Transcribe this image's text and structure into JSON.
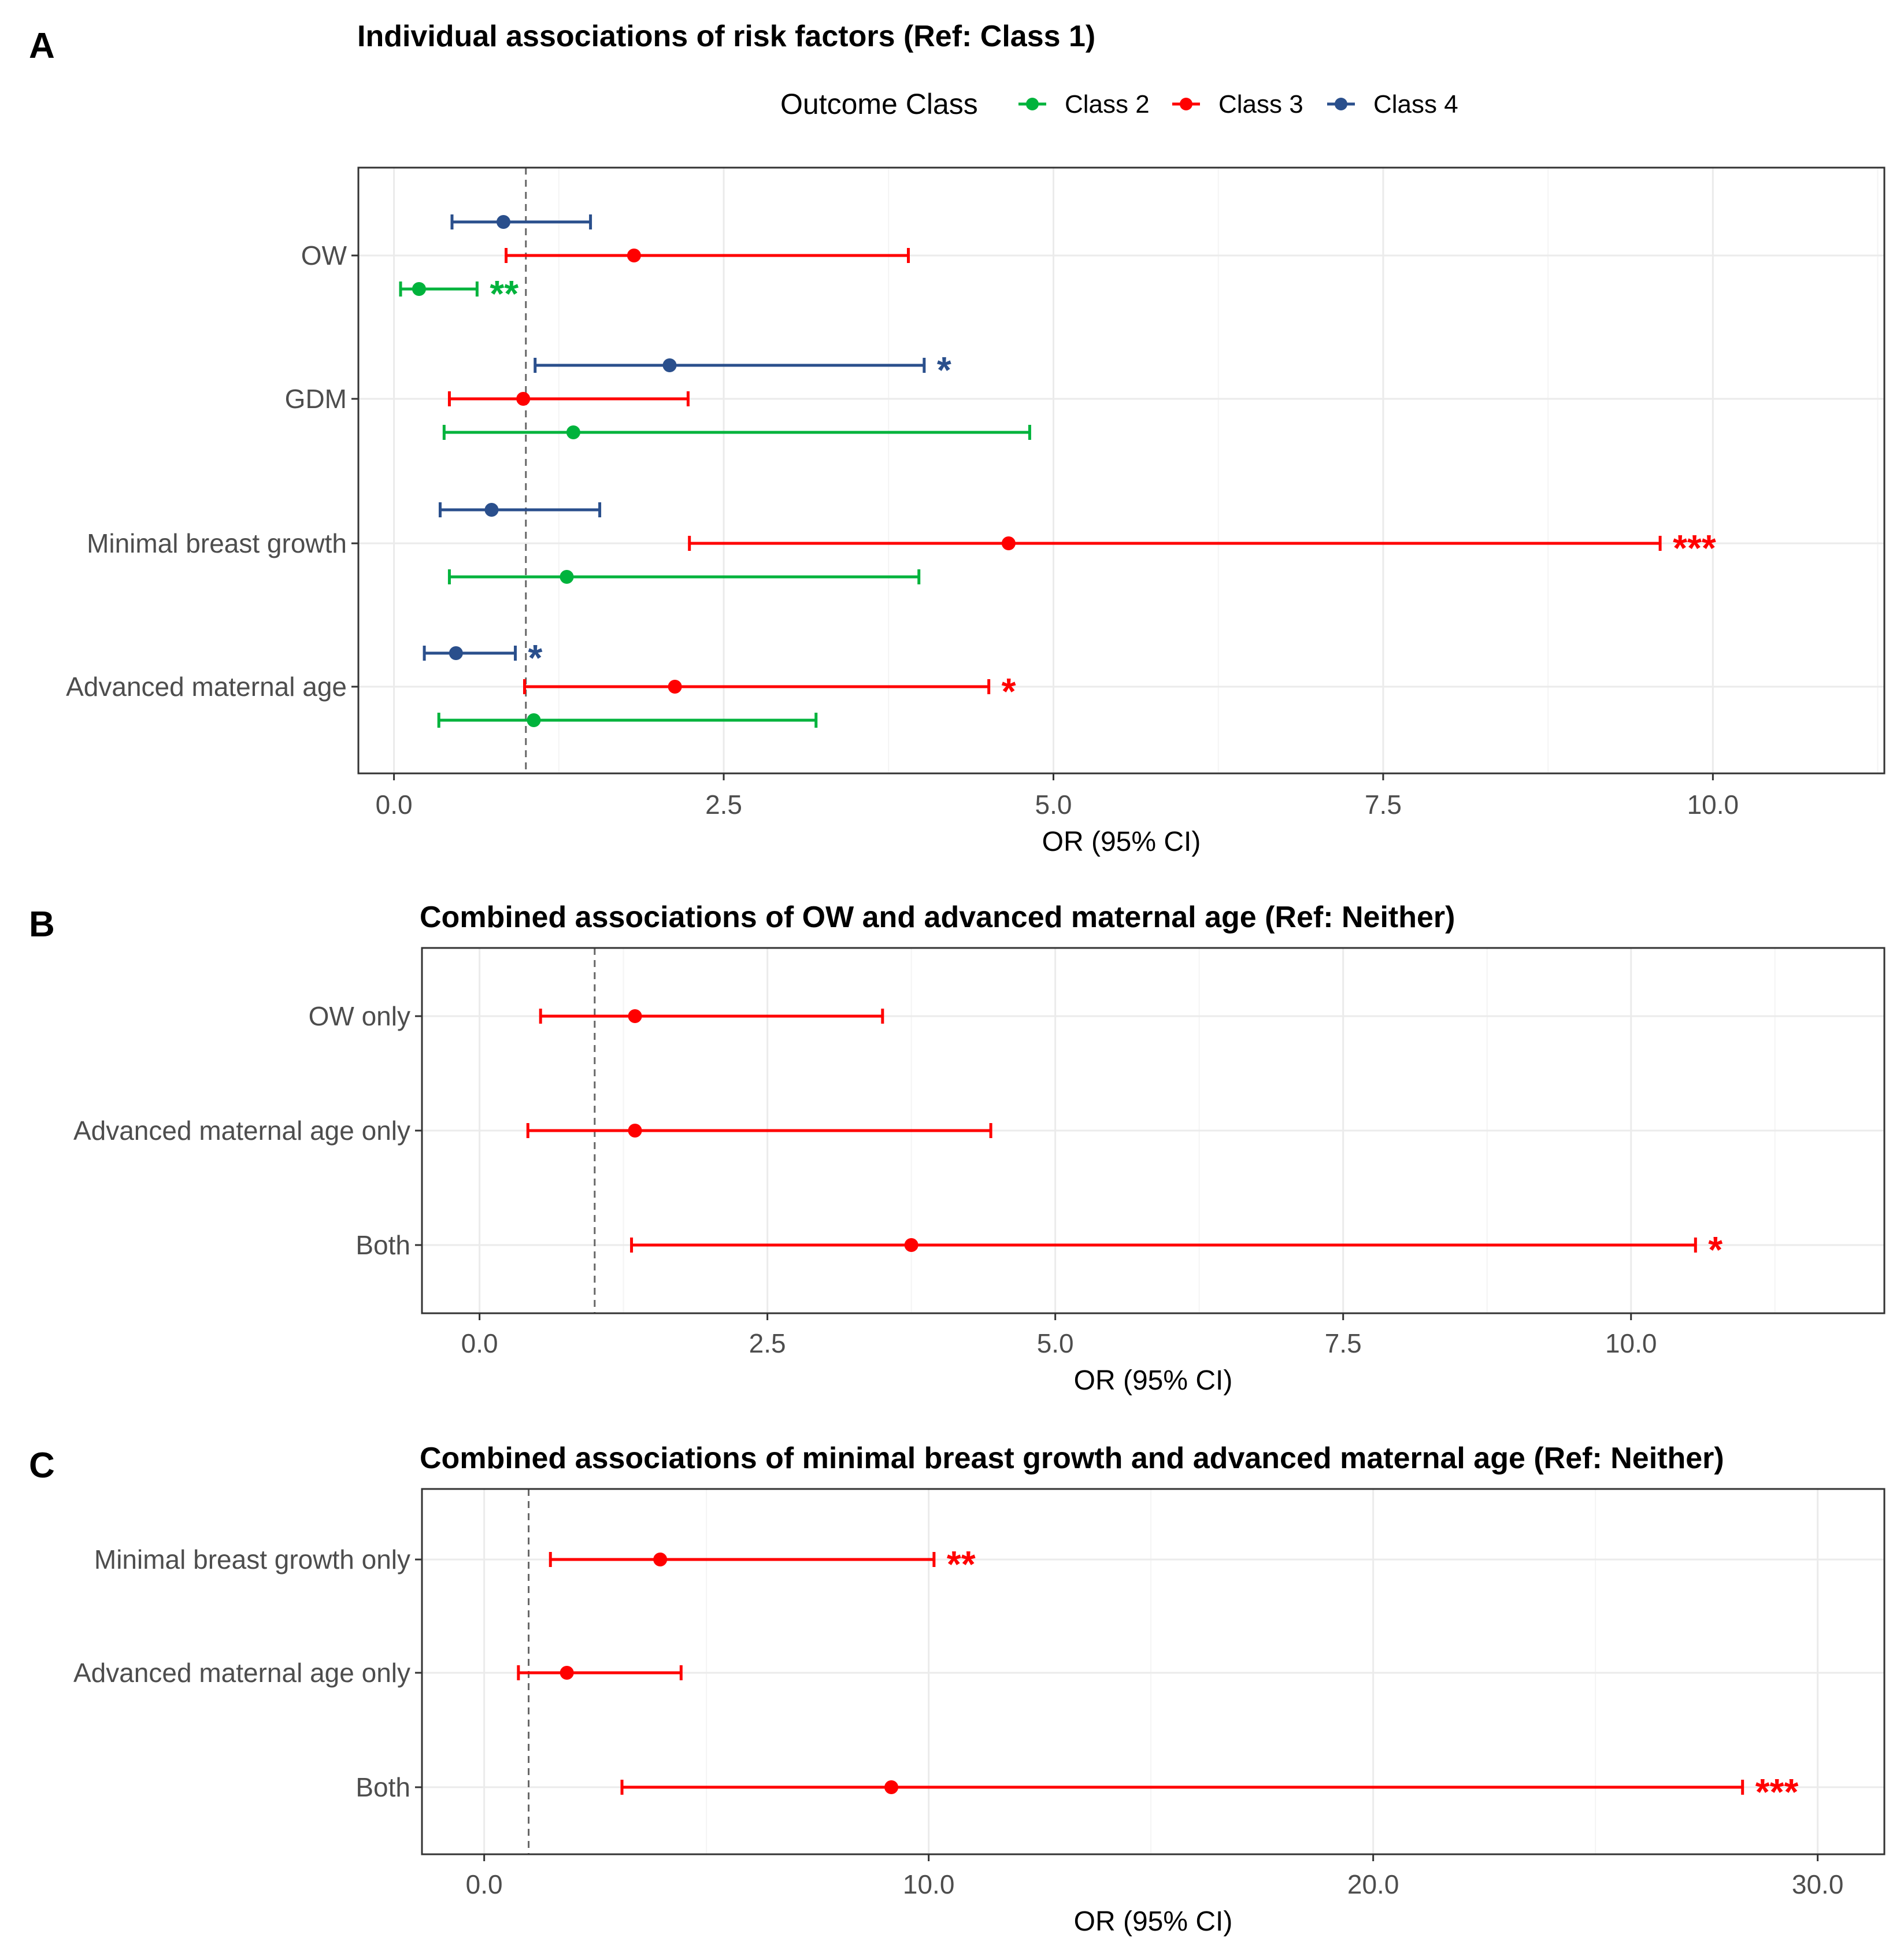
{
  "colors": {
    "Class 2": "#00b33c",
    "Class 3": "#ff0000",
    "Class 4": "#2a4f8c"
  },
  "chart_data": [
    {
      "type": "forest",
      "panel": "A",
      "title": "Individual associations of risk factors (Ref: Class 1)",
      "xlabel": "OR (95% CI)",
      "ylabel": "",
      "xlim": [
        -0.27,
        11.3
      ],
      "xticks": [
        "0.0",
        "2.5",
        "5.0",
        "7.5",
        "10.0"
      ],
      "reference_line": 1,
      "legend": {
        "title": "Outcome Class",
        "placement": "top",
        "entries": [
          "Class 2",
          "Class 3",
          "Class 4"
        ]
      },
      "categories": [
        "OW",
        "GDM",
        "Minimal breast growth",
        "Advanced maternal age"
      ],
      "series": [
        {
          "name": "Class 4",
          "points": [
            {
              "category": "OW",
              "or": 0.83,
              "lo": 0.44,
              "hi": 1.49,
              "sig": ""
            },
            {
              "category": "GDM",
              "or": 2.09,
              "lo": 1.07,
              "hi": 4.02,
              "sig": "*"
            },
            {
              "category": "Minimal breast growth",
              "or": 0.74,
              "lo": 0.35,
              "hi": 1.56,
              "sig": ""
            },
            {
              "category": "Advanced maternal age",
              "or": 0.47,
              "lo": 0.23,
              "hi": 0.92,
              "sig": "*"
            }
          ]
        },
        {
          "name": "Class 3",
          "points": [
            {
              "category": "OW",
              "or": 1.82,
              "lo": 0.85,
              "hi": 3.9,
              "sig": ""
            },
            {
              "category": "GDM",
              "or": 0.98,
              "lo": 0.42,
              "hi": 2.23,
              "sig": ""
            },
            {
              "category": "Minimal breast growth",
              "or": 4.66,
              "lo": 2.24,
              "hi": 9.6,
              "sig": "***"
            },
            {
              "category": "Advanced maternal age",
              "or": 2.13,
              "lo": 0.99,
              "hi": 4.51,
              "sig": "*"
            }
          ]
        },
        {
          "name": "Class 2",
          "points": [
            {
              "category": "OW",
              "or": 0.19,
              "lo": 0.05,
              "hi": 0.63,
              "sig": "**"
            },
            {
              "category": "GDM",
              "or": 1.36,
              "lo": 0.38,
              "hi": 4.82,
              "sig": ""
            },
            {
              "category": "Minimal breast growth",
              "or": 1.31,
              "lo": 0.42,
              "hi": 3.98,
              "sig": ""
            },
            {
              "category": "Advanced maternal age",
              "or": 1.06,
              "lo": 0.34,
              "hi": 3.2,
              "sig": ""
            }
          ]
        }
      ]
    },
    {
      "type": "forest",
      "panel": "B",
      "title": "Combined associations of OW and advanced maternal age (Ref: Neither)",
      "xlabel": "OR (95% CI)",
      "ylabel": "",
      "xlim": [
        -0.5,
        12.2
      ],
      "xticks": [
        "0.0",
        "2.5",
        "5.0",
        "7.5",
        "10.0"
      ],
      "reference_line": 1,
      "categories": [
        "OW only",
        "Advanced maternal age only",
        "Both"
      ],
      "series": [
        {
          "name": "Class 3",
          "points": [
            {
              "category": "OW only",
              "or": 1.35,
              "lo": 0.53,
              "hi": 3.5,
              "sig": ""
            },
            {
              "category": "Advanced maternal age only",
              "or": 1.35,
              "lo": 0.42,
              "hi": 4.44,
              "sig": ""
            },
            {
              "category": "Both",
              "or": 3.75,
              "lo": 1.32,
              "hi": 10.56,
              "sig": "*"
            }
          ]
        }
      ]
    },
    {
      "type": "forest",
      "panel": "C",
      "title": "Combined associations of minimal breast growth and advanced maternal age (Ref: Neither)",
      "xlabel": "OR (95% CI)",
      "ylabel": "",
      "xlim": [
        -1.4,
        31.5
      ],
      "xticks": [
        "0.0",
        "10.0",
        "20.0",
        "30.0"
      ],
      "reference_line": 1,
      "categories": [
        "Minimal breast growth only",
        "Advanced maternal age only",
        "Both"
      ],
      "series": [
        {
          "name": "Class 3",
          "points": [
            {
              "category": "Minimal breast growth only",
              "or": 3.96,
              "lo": 1.49,
              "hi": 10.12,
              "sig": "**"
            },
            {
              "category": "Advanced maternal age only",
              "or": 1.86,
              "lo": 0.77,
              "hi": 4.43,
              "sig": ""
            },
            {
              "category": "Both",
              "or": 9.16,
              "lo": 3.1,
              "hi": 28.31,
              "sig": "***"
            }
          ]
        }
      ]
    }
  ]
}
